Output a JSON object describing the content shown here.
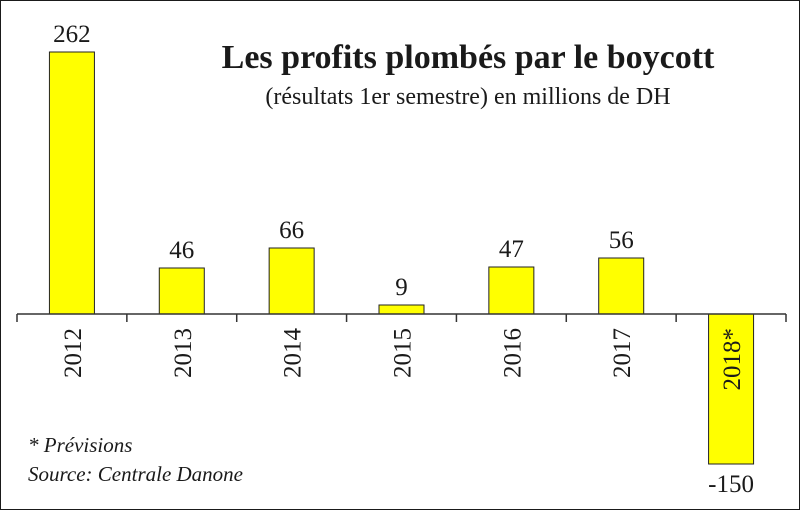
{
  "chart_data": {
    "type": "bar",
    "title": "Les profits plombés par le boycott",
    "subtitle": "(résultats 1er semestre) en millions de DH",
    "categories": [
      "2012",
      "2013",
      "2014",
      "2015",
      "2016",
      "2017",
      "2018*"
    ],
    "values": [
      262,
      46,
      66,
      9,
      47,
      56,
      -150
    ],
    "value_labels": [
      "262",
      "46",
      "66",
      "9",
      "47",
      "56",
      "-150"
    ],
    "xlabel": "",
    "ylabel": "",
    "ylim": [
      -150,
      262
    ],
    "grid": false,
    "legend": "none",
    "bar_color": "#ffff00",
    "bar_stroke": "#222222",
    "footnotes": [
      "* Prévisions",
      "Source: Centrale Danone"
    ]
  }
}
